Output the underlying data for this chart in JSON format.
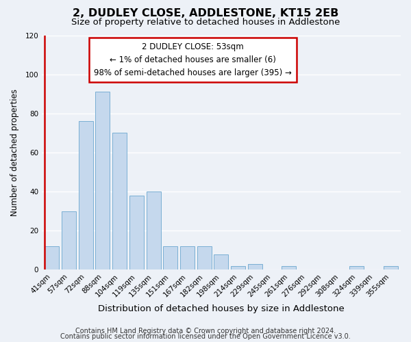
{
  "title": "2, DUDLEY CLOSE, ADDLESTONE, KT15 2EB",
  "subtitle": "Size of property relative to detached houses in Addlestone",
  "xlabel": "Distribution of detached houses by size in Addlestone",
  "ylabel": "Number of detached properties",
  "bar_labels": [
    "41sqm",
    "57sqm",
    "72sqm",
    "88sqm",
    "104sqm",
    "119sqm",
    "135sqm",
    "151sqm",
    "167sqm",
    "182sqm",
    "198sqm",
    "214sqm",
    "229sqm",
    "245sqm",
    "261sqm",
    "276sqm",
    "292sqm",
    "308sqm",
    "324sqm",
    "339sqm",
    "355sqm"
  ],
  "bar_values": [
    12,
    30,
    76,
    91,
    70,
    38,
    40,
    12,
    12,
    12,
    8,
    2,
    3,
    0,
    2,
    0,
    0,
    0,
    2,
    0,
    2
  ],
  "bar_color": "#c5d8ed",
  "bar_edge_color": "#7aafd4",
  "highlight_color": "#cc0000",
  "ylim": [
    0,
    120
  ],
  "yticks": [
    0,
    20,
    40,
    60,
    80,
    100,
    120
  ],
  "annotation_title": "2 DUDLEY CLOSE: 53sqm",
  "annotation_line1": "← 1% of detached houses are smaller (6)",
  "annotation_line2": "98% of semi-detached houses are larger (395) →",
  "annotation_box_color": "#ffffff",
  "annotation_box_edge": "#cc0000",
  "footer_line1": "Contains HM Land Registry data © Crown copyright and database right 2024.",
  "footer_line2": "Contains public sector information licensed under the Open Government Licence v3.0.",
  "background_color": "#edf1f7",
  "grid_color": "#ffffff",
  "title_fontsize": 11.5,
  "subtitle_fontsize": 9.5,
  "xlabel_fontsize": 9.5,
  "ylabel_fontsize": 8.5,
  "tick_fontsize": 7.5,
  "annotation_fontsize": 8.5,
  "footer_fontsize": 7
}
